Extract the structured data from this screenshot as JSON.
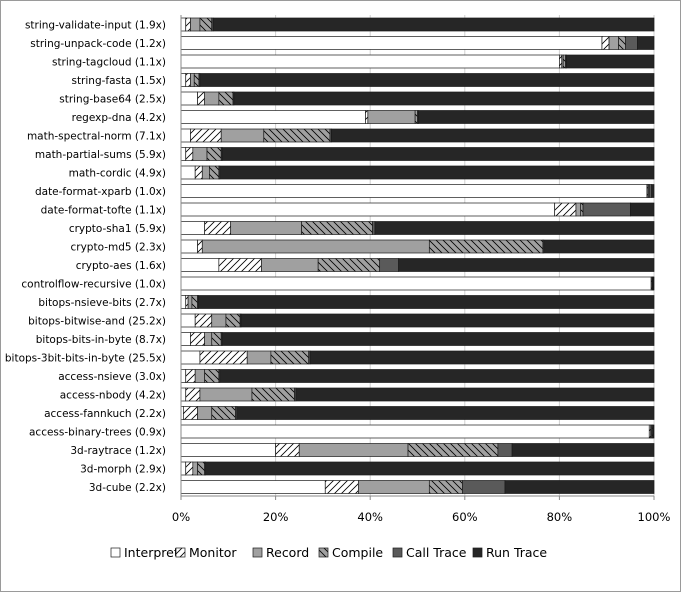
{
  "chart_data": {
    "type": "bar",
    "orientation": "horizontal",
    "stacked": true,
    "normalized": true,
    "categories": [
      "string-validate-input (1.9x)",
      "string-unpack-code (1.2x)",
      "string-tagcloud (1.1x)",
      "string-fasta (1.5x)",
      "string-base64 (2.5x)",
      "regexp-dna (4.2x)",
      "math-spectral-norm (7.1x)",
      "math-partial-sums (5.9x)",
      "math-cordic (4.9x)",
      "date-format-xparb (1.0x)",
      "date-format-tofte (1.1x)",
      "crypto-sha1 (5.9x)",
      "crypto-md5 (2.3x)",
      "crypto-aes (1.6x)",
      "controlflow-recursive (1.0x)",
      "bitops-nsieve-bits (2.7x)",
      "bitops-bitwise-and (25.2x)",
      "bitops-bits-in-byte (8.7x)",
      "bitops-3bit-bits-in-byte (25.5x)",
      "access-nsieve (3.0x)",
      "access-nbody (4.2x)",
      "access-fannkuch (2.2x)",
      "access-binary-trees (0.9x)",
      "3d-raytrace (1.2x)",
      "3d-morph (2.9x)",
      "3d-cube (2.2x)"
    ],
    "series": [
      {
        "name": "Interpret",
        "color": "#ffffff",
        "pattern": "none",
        "values": [
          1,
          89,
          80,
          1,
          3.5,
          39,
          2,
          1,
          3,
          98.5,
          79,
          5,
          3.5,
          8,
          99.5,
          1,
          3,
          2,
          4,
          1,
          1,
          0.5,
          99,
          20,
          1,
          30.5
        ]
      },
      {
        "name": "Monitor",
        "color": "#ffffff",
        "pattern": "diagonal-forward",
        "values": [
          1,
          1.5,
          0.5,
          1,
          1.5,
          0.5,
          6.5,
          1.5,
          1.5,
          0.2,
          4.5,
          5.5,
          1,
          9,
          0.2,
          0.5,
          3.5,
          3,
          10,
          2,
          3,
          3,
          0.3,
          5,
          1.5,
          7
        ]
      },
      {
        "name": "Record",
        "color": "#a0a0a0",
        "pattern": "none",
        "values": [
          2,
          2,
          0.3,
          0.8,
          3,
          10,
          9,
          3,
          1.5,
          0.2,
          1,
          15,
          48,
          12,
          0.1,
          0.8,
          3,
          1.5,
          5,
          2,
          11,
          3,
          0.2,
          23,
          1,
          15
        ]
      },
      {
        "name": "Compile",
        "color": "#a0a0a0",
        "pattern": "diagonal-back",
        "values": [
          2.5,
          1.5,
          0.5,
          1,
          3,
          0.5,
          14,
          3,
          2,
          0.1,
          0.5,
          15,
          24,
          13,
          0.1,
          1.2,
          3,
          2,
          8,
          3,
          9,
          5,
          0.2,
          19,
          1.5,
          7
        ]
      },
      {
        "name": "Call Trace",
        "color": "#5a5a5a",
        "pattern": "none",
        "values": [
          0.3,
          2.5,
          0.2,
          0.2,
          0.2,
          0.2,
          0.3,
          0.2,
          0.2,
          0.5,
          10,
          0.5,
          0.2,
          4,
          0.1,
          0.2,
          0.2,
          0.2,
          0.3,
          0.2,
          0.3,
          0.3,
          0.1,
          3,
          0.2,
          9
        ]
      },
      {
        "name": "Run Trace",
        "color": "#262626",
        "pattern": "none",
        "values": [
          93.2,
          3.5,
          18.5,
          96,
          88.8,
          49.8,
          68.2,
          91.3,
          91.8,
          0.5,
          5,
          59,
          23.3,
          54,
          0.1,
          96.3,
          87.3,
          91.3,
          72.7,
          91.8,
          75.7,
          88.2,
          0.2,
          30,
          94.8,
          31.5
        ]
      }
    ],
    "x_ticks": [
      "0%",
      "20%",
      "40%",
      "60%",
      "80%",
      "100%"
    ],
    "xlim": [
      0,
      100
    ],
    "grid": "vertical",
    "legend_position": "bottom"
  }
}
